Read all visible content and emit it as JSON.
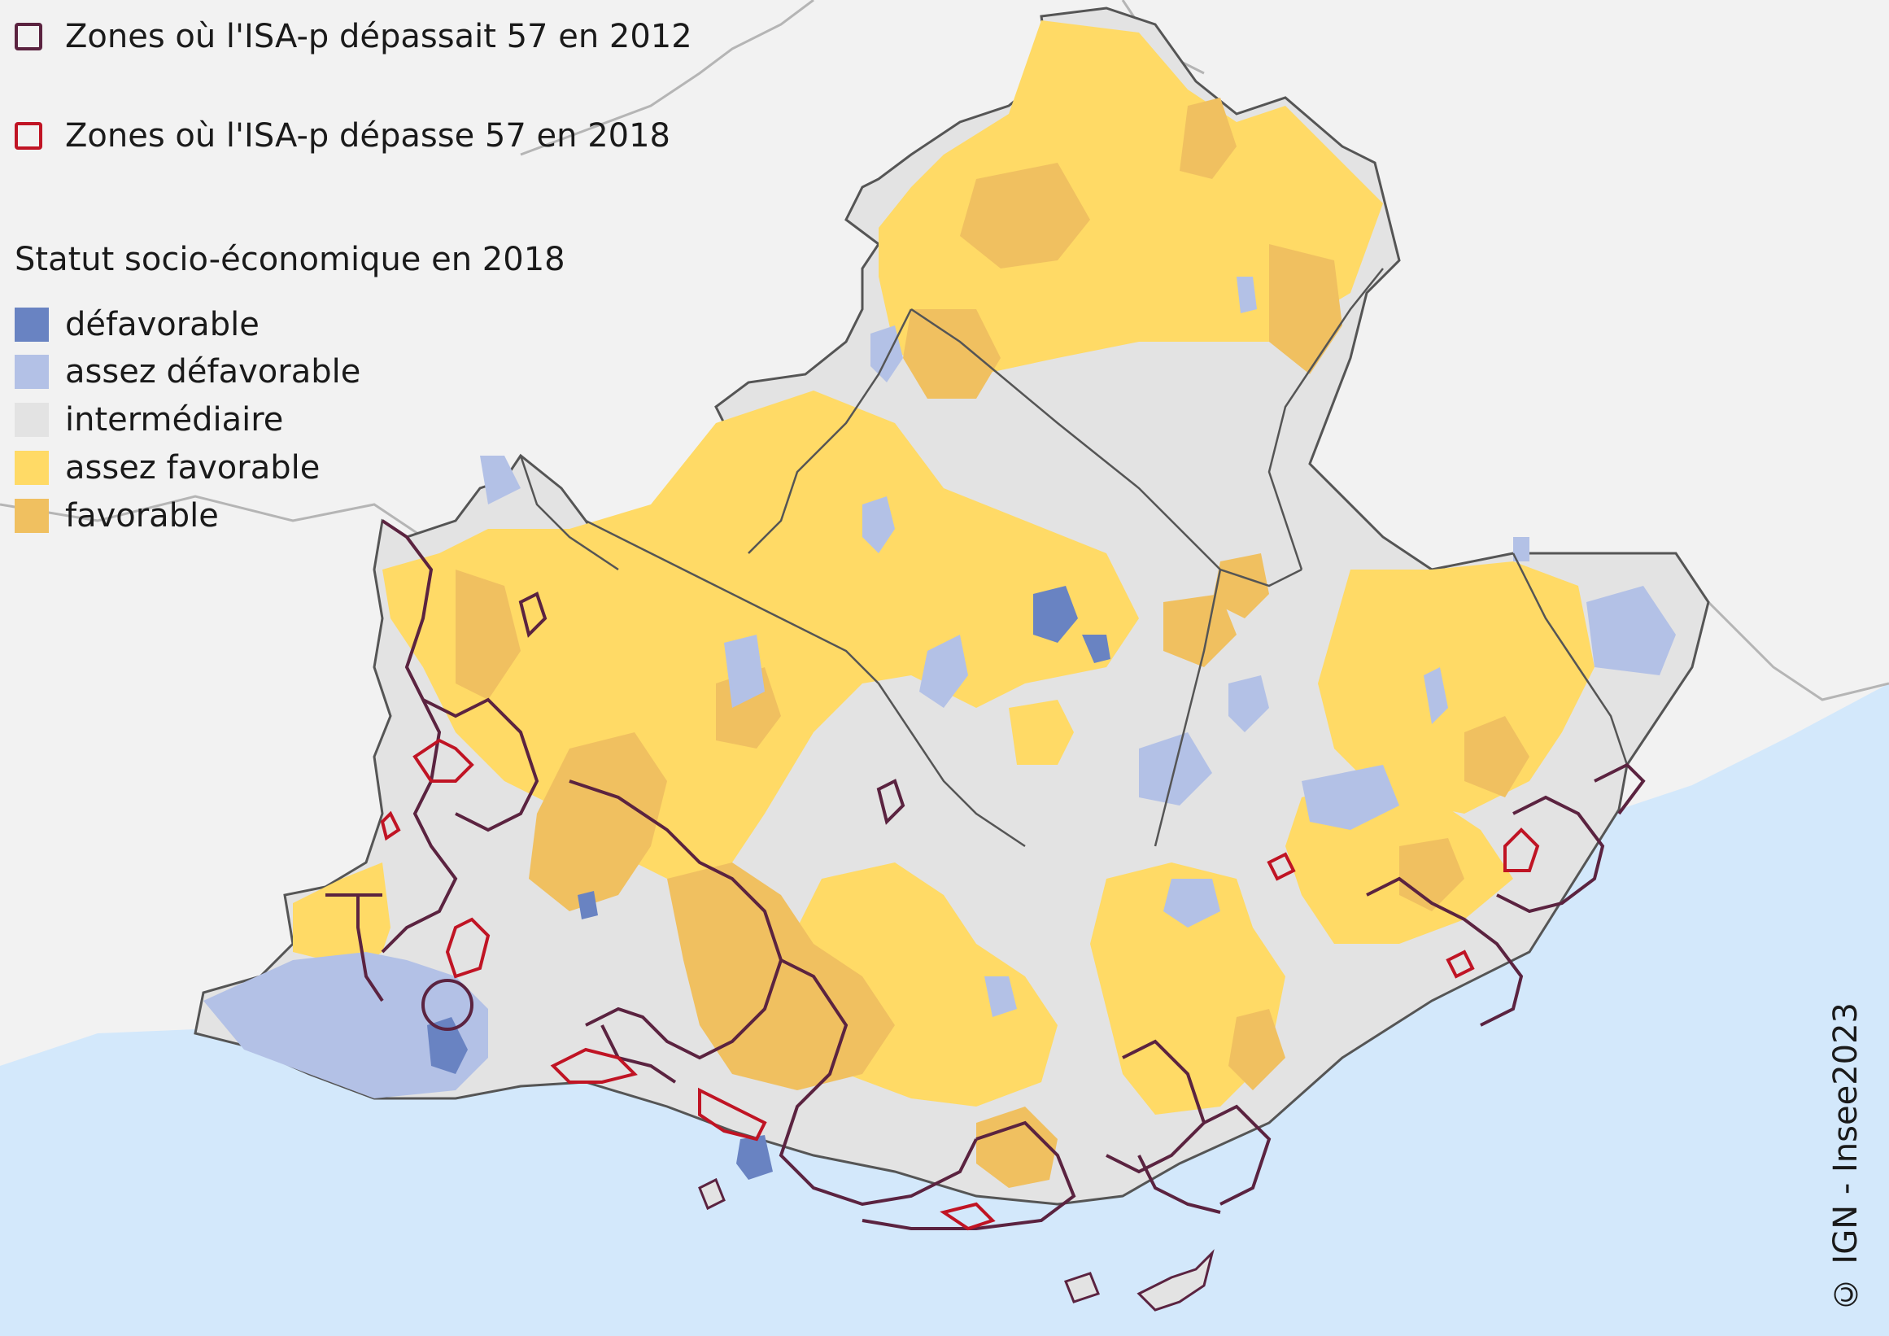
{
  "colors": {
    "background": "#f2f2f2",
    "sea": "#d3e8fb",
    "border_gray": "#b5b5b5",
    "department_line": "#555555",
    "outline_2012": "#5b2340",
    "outline_2018": "#c01424"
  },
  "legend": {
    "outline_2012": "Zones où l'ISA-p dépassait 57 en 2012",
    "outline_2018": "Zones où l'ISA-p dépasse 57 en 2018",
    "title": "Statut socio-économique en 2018",
    "categories": [
      {
        "label": "défavorable",
        "color": "#6983c2"
      },
      {
        "label": "assez défavorable",
        "color": "#b3c1e6"
      },
      {
        "label": "intermédiaire",
        "color": "#e3e3e3"
      },
      {
        "label": "assez favorable",
        "color": "#ffda66"
      },
      {
        "label": "favorable",
        "color": "#f0c060"
      }
    ]
  },
  "source": "© IGN - Insee2023"
}
